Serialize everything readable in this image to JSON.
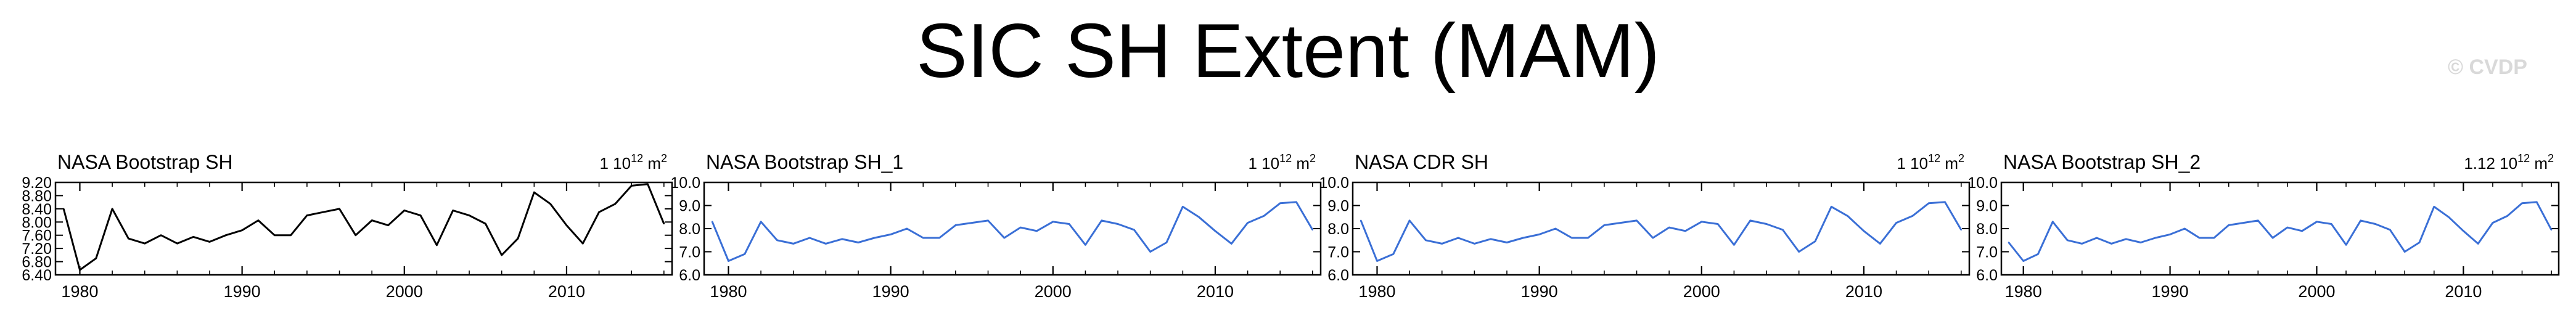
{
  "figure": {
    "title": "SIC SH Extent (MAM)",
    "watermark": "© CVDP"
  },
  "colors": {
    "black_series": "#000000",
    "blue_series": "#3a6fd6",
    "axis": "#000000"
  },
  "chart_data": [
    {
      "type": "line",
      "title": "NASA Bootstrap SH",
      "units_label": "1 10^12 m^2",
      "units_prefix": "1 10",
      "units_exp": "12",
      "units_suffix": " m",
      "units_exp2": "2",
      "color": "#000000",
      "x": [
        1979,
        1980,
        1981,
        1982,
        1983,
        1984,
        1985,
        1986,
        1987,
        1988,
        1989,
        1990,
        1991,
        1992,
        1993,
        1994,
        1995,
        1996,
        1997,
        1998,
        1999,
        2000,
        2001,
        2002,
        2003,
        2004,
        2005,
        2006,
        2007,
        2008,
        2009,
        2010,
        2011,
        2012,
        2013,
        2014,
        2015,
        2016
      ],
      "values": [
        8.4,
        6.55,
        6.9,
        8.4,
        7.5,
        7.35,
        7.6,
        7.35,
        7.55,
        7.4,
        7.6,
        7.75,
        8.05,
        7.6,
        7.6,
        8.2,
        8.3,
        8.4,
        7.6,
        8.05,
        7.9,
        8.35,
        8.2,
        7.3,
        8.35,
        8.2,
        7.95,
        7.0,
        7.5,
        8.9,
        8.55,
        7.9,
        7.35,
        8.3,
        8.55,
        9.1,
        9.15,
        7.95
      ],
      "xlim": [
        1978.5,
        2016.5
      ],
      "ylim": [
        6.4,
        9.2
      ],
      "yticks": [
        6.4,
        6.8,
        7.2,
        7.6,
        8.0,
        8.4,
        8.8,
        9.2
      ],
      "ytick_labels": [
        "6.40",
        "6.80",
        "7.20",
        "7.60",
        "8.00",
        "8.40",
        "8.80",
        "9.20"
      ],
      "xticks": [
        1980,
        1990,
        2000,
        2010
      ],
      "xtick_labels": [
        "1980",
        "1990",
        "2000",
        "2010"
      ]
    },
    {
      "type": "line",
      "title": "NASA Bootstrap SH_1",
      "units_label": "1 10^12 m^2",
      "units_prefix": "1 10",
      "units_exp": "12",
      "units_suffix": " m",
      "units_exp2": "2",
      "color": "#3a6fd6",
      "x": [
        1979,
        1980,
        1981,
        1982,
        1983,
        1984,
        1985,
        1986,
        1987,
        1988,
        1989,
        1990,
        1991,
        1992,
        1993,
        1994,
        1995,
        1996,
        1997,
        1998,
        1999,
        2000,
        2001,
        2002,
        2003,
        2004,
        2005,
        2006,
        2007,
        2008,
        2009,
        2010,
        2011,
        2012,
        2013,
        2014,
        2015,
        2016
      ],
      "values": [
        8.3,
        6.6,
        6.9,
        8.3,
        7.5,
        7.35,
        7.6,
        7.35,
        7.55,
        7.4,
        7.6,
        7.75,
        8.0,
        7.6,
        7.6,
        8.15,
        8.25,
        8.35,
        7.6,
        8.05,
        7.9,
        8.3,
        8.2,
        7.3,
        8.35,
        8.2,
        7.95,
        7.0,
        7.4,
        8.95,
        8.5,
        7.9,
        7.35,
        8.25,
        8.55,
        9.1,
        9.15,
        7.95
      ],
      "xlim": [
        1978.5,
        2016.5
      ],
      "ylim": [
        6.0,
        10.0
      ],
      "yticks": [
        6.0,
        7.0,
        8.0,
        9.0,
        10.0
      ],
      "ytick_labels": [
        "6.0",
        "7.0",
        "8.0",
        "9.0",
        "10.0"
      ],
      "xticks": [
        1980,
        1990,
        2000,
        2010
      ],
      "xtick_labels": [
        "1980",
        "1990",
        "2000",
        "2010"
      ]
    },
    {
      "type": "line",
      "title": "NASA CDR SH",
      "units_label": "1 10^12 m^2",
      "units_prefix": "1 10",
      "units_exp": "12",
      "units_suffix": " m",
      "units_exp2": "2",
      "color": "#3a6fd6",
      "x": [
        1979,
        1980,
        1981,
        1982,
        1983,
        1984,
        1985,
        1986,
        1987,
        1988,
        1989,
        1990,
        1991,
        1992,
        1993,
        1994,
        1995,
        1996,
        1997,
        1998,
        1999,
        2000,
        2001,
        2002,
        2003,
        2004,
        2005,
        2006,
        2007,
        2008,
        2009,
        2010,
        2011,
        2012,
        2013,
        2014,
        2015,
        2016
      ],
      "values": [
        8.35,
        6.6,
        6.9,
        8.35,
        7.5,
        7.35,
        7.6,
        7.35,
        7.55,
        7.4,
        7.6,
        7.75,
        8.0,
        7.6,
        7.6,
        8.15,
        8.25,
        8.35,
        7.6,
        8.05,
        7.9,
        8.3,
        8.2,
        7.3,
        8.35,
        8.2,
        7.95,
        7.0,
        7.45,
        8.95,
        8.55,
        7.9,
        7.35,
        8.25,
        8.55,
        9.1,
        9.15,
        7.95
      ],
      "xlim": [
        1978.5,
        2016.5
      ],
      "ylim": [
        6.0,
        10.0
      ],
      "yticks": [
        6.0,
        7.0,
        8.0,
        9.0,
        10.0
      ],
      "ytick_labels": [
        "6.0",
        "7.0",
        "8.0",
        "9.0",
        "10.0"
      ],
      "xticks": [
        1980,
        1990,
        2000,
        2010
      ],
      "xtick_labels": [
        "1980",
        "1990",
        "2000",
        "2010"
      ]
    },
    {
      "type": "line",
      "title": "NASA Bootstrap SH_2",
      "units_label": "1.12 10^12 m^2",
      "units_prefix": "1.12 10",
      "units_exp": "12",
      "units_suffix": " m",
      "units_exp2": "2",
      "color": "#3a6fd6",
      "x": [
        1979,
        1980,
        1981,
        1982,
        1983,
        1984,
        1985,
        1986,
        1987,
        1988,
        1989,
        1990,
        1991,
        1992,
        1993,
        1994,
        1995,
        1996,
        1997,
        1998,
        1999,
        2000,
        2001,
        2002,
        2003,
        2004,
        2005,
        2006,
        2007,
        2008,
        2009,
        2010,
        2011,
        2012,
        2013,
        2014,
        2015,
        2016
      ],
      "values": [
        7.4,
        6.6,
        6.9,
        8.3,
        7.5,
        7.35,
        7.6,
        7.35,
        7.55,
        7.4,
        7.6,
        7.75,
        8.0,
        7.6,
        7.6,
        8.15,
        8.25,
        8.35,
        7.6,
        8.05,
        7.9,
        8.3,
        8.2,
        7.3,
        8.35,
        8.2,
        7.95,
        7.0,
        7.4,
        8.95,
        8.5,
        7.9,
        7.35,
        8.25,
        8.55,
        9.1,
        9.15,
        7.95
      ],
      "xlim": [
        1978.5,
        2016.5
      ],
      "ylim": [
        6.0,
        10.0
      ],
      "yticks": [
        6.0,
        7.0,
        8.0,
        9.0,
        10.0
      ],
      "ytick_labels": [
        "6.0",
        "7.0",
        "8.0",
        "9.0",
        "10.0"
      ],
      "xticks": [
        1980,
        1990,
        2000,
        2010
      ],
      "xtick_labels": [
        "1980",
        "1990",
        "2000",
        "2010"
      ]
    }
  ]
}
